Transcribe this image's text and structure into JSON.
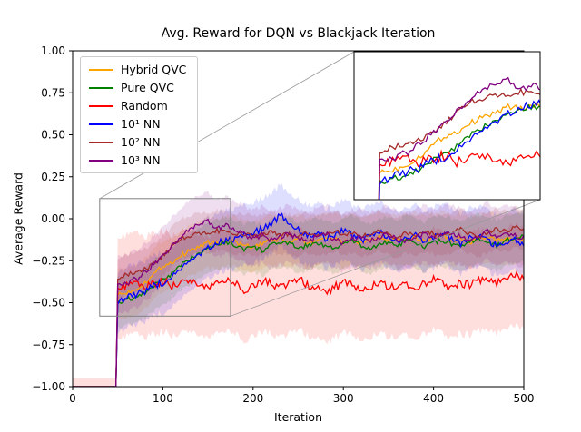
{
  "chart_data": {
    "type": "line",
    "title": "Avg. Reward for DQN vs Blackjack Iteration",
    "xlabel": "Iteration",
    "ylabel": "Average Reward",
    "xlim": [
      0,
      500
    ],
    "ylim": [
      -1.0,
      1.0
    ],
    "xticks": [
      0,
      100,
      200,
      300,
      400,
      500
    ],
    "yticks": [
      1.0,
      0.75,
      0.5,
      0.25,
      0.0,
      -0.25,
      -0.5,
      -0.75,
      -1.0
    ],
    "grid": false,
    "legend_position": "upper-left",
    "x_start": 0,
    "x_step": 10,
    "noise_amplitude": 0.014,
    "band_alpha": 0.13,
    "series": [
      {
        "name": "Hybrid QVC",
        "color": "#ffa500",
        "band": 0.15,
        "noise_scale": 1.0,
        "values": [
          -1,
          -1,
          -1,
          -1,
          -1,
          -0.45,
          -0.44,
          -0.42,
          -0.38,
          -0.33,
          -0.28,
          -0.26,
          -0.22,
          -0.19,
          -0.17,
          -0.14,
          -0.15,
          -0.13,
          -0.14,
          -0.16,
          -0.17,
          -0.15,
          -0.13,
          -0.12,
          -0.14,
          -0.12,
          -0.15,
          -0.13,
          -0.11,
          -0.12,
          -0.14,
          -0.12,
          -0.15,
          -0.13,
          -0.11,
          -0.13,
          -0.12,
          -0.14,
          -0.11,
          -0.13,
          -0.12,
          -0.1,
          -0.13,
          -0.12,
          -0.14,
          -0.12,
          -0.11,
          -0.13,
          -0.12,
          -0.13,
          -0.12
        ]
      },
      {
        "name": "Pure QVC",
        "color": "#008000",
        "band": 0.15,
        "noise_scale": 1.0,
        "values": [
          -1,
          -1,
          -1,
          -1,
          -1,
          -0.5,
          -0.48,
          -0.47,
          -0.44,
          -0.4,
          -0.36,
          -0.33,
          -0.28,
          -0.24,
          -0.2,
          -0.17,
          -0.15,
          -0.14,
          -0.16,
          -0.18,
          -0.17,
          -0.19,
          -0.16,
          -0.14,
          -0.15,
          -0.17,
          -0.16,
          -0.14,
          -0.16,
          -0.18,
          -0.15,
          -0.13,
          -0.16,
          -0.18,
          -0.15,
          -0.14,
          -0.16,
          -0.13,
          -0.15,
          -0.17,
          -0.14,
          -0.13,
          -0.15,
          -0.17,
          -0.14,
          -0.12,
          -0.14,
          -0.16,
          -0.13,
          -0.11,
          -0.1
        ]
      },
      {
        "name": "Random",
        "color": "#ff0000",
        "band": 0.3,
        "noise_scale": 1.8,
        "values": [
          -1,
          -1,
          -1,
          -1,
          -1,
          -0.42,
          -0.4,
          -0.38,
          -0.41,
          -0.39,
          -0.37,
          -0.4,
          -0.38,
          -0.36,
          -0.39,
          -0.41,
          -0.38,
          -0.36,
          -0.39,
          -0.42,
          -0.4,
          -0.37,
          -0.39,
          -0.41,
          -0.38,
          -0.36,
          -0.39,
          -0.42,
          -0.44,
          -0.41,
          -0.38,
          -0.4,
          -0.43,
          -0.4,
          -0.37,
          -0.4,
          -0.42,
          -0.39,
          -0.41,
          -0.38,
          -0.36,
          -0.39,
          -0.41,
          -0.38,
          -0.4,
          -0.37,
          -0.35,
          -0.38,
          -0.36,
          -0.34,
          -0.35
        ]
      },
      {
        "name": "10¹ NN",
        "color": "#0000ff",
        "band": 0.18,
        "noise_scale": 1.5,
        "values": [
          -1,
          -1,
          -1,
          -1,
          -1,
          -0.5,
          -0.47,
          -0.45,
          -0.43,
          -0.4,
          -0.38,
          -0.35,
          -0.3,
          -0.26,
          -0.22,
          -0.18,
          -0.15,
          -0.13,
          -0.12,
          -0.1,
          -0.08,
          -0.06,
          -0.03,
          0.02,
          -0.02,
          -0.06,
          -0.1,
          -0.08,
          -0.12,
          -0.1,
          -0.07,
          -0.1,
          -0.13,
          -0.1,
          -0.08,
          -0.11,
          -0.14,
          -0.12,
          -0.1,
          -0.13,
          -0.11,
          -0.09,
          -0.12,
          -0.15,
          -0.12,
          -0.1,
          -0.13,
          -0.16,
          -0.14,
          -0.12,
          -0.15
        ]
      },
      {
        "name": "10² NN",
        "color": "#a52a2a",
        "band": 0.12,
        "noise_scale": 1.0,
        "values": [
          -1,
          -1,
          -1,
          -1,
          -1,
          -0.35,
          -0.33,
          -0.32,
          -0.3,
          -0.27,
          -0.22,
          -0.17,
          -0.12,
          -0.1,
          -0.08,
          -0.09,
          -0.07,
          -0.08,
          -0.1,
          -0.09,
          -0.11,
          -0.09,
          -0.08,
          -0.1,
          -0.09,
          -0.11,
          -0.08,
          -0.1,
          -0.09,
          -0.07,
          -0.1,
          -0.08,
          -0.11,
          -0.09,
          -0.07,
          -0.09,
          -0.11,
          -0.08,
          -0.1,
          -0.07,
          -0.09,
          -0.11,
          -0.08,
          -0.06,
          -0.09,
          -0.11,
          -0.08,
          -0.06,
          -0.08,
          -0.05,
          -0.06
        ]
      },
      {
        "name": "10³ NN",
        "color": "#800080",
        "band": 0.17,
        "noise_scale": 1.2,
        "values": [
          -1,
          -1,
          -1,
          -1,
          -1,
          -0.4,
          -0.38,
          -0.36,
          -0.32,
          -0.27,
          -0.22,
          -0.16,
          -0.1,
          -0.06,
          -0.03,
          -0.02,
          -0.05,
          -0.04,
          -0.07,
          -0.09,
          -0.12,
          -0.1,
          -0.13,
          -0.11,
          -0.09,
          -0.12,
          -0.14,
          -0.11,
          -0.09,
          -0.12,
          -0.15,
          -0.12,
          -0.1,
          -0.13,
          -0.11,
          -0.09,
          -0.12,
          -0.14,
          -0.11,
          -0.09,
          -0.12,
          -0.1,
          -0.08,
          -0.11,
          -0.13,
          -0.1,
          -0.08,
          -0.11,
          -0.09,
          -0.1,
          -0.11
        ]
      }
    ],
    "inset": {
      "x_range": [
        30,
        175
      ],
      "y_range": [
        -0.58,
        0.12
      ]
    }
  }
}
